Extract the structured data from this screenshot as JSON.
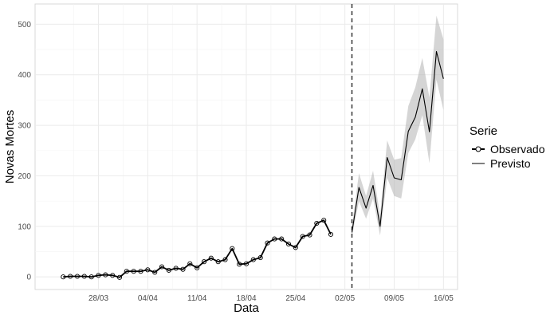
{
  "chart_data": {
    "type": "line",
    "title": "",
    "xlabel": "Data",
    "ylabel": "Novas Mortes",
    "ylim": [
      -25,
      540
    ],
    "yticks": [
      0,
      100,
      200,
      300,
      400,
      500
    ],
    "xrange": [
      "2020-03-19",
      "2020-05-18"
    ],
    "xticks": [
      {
        "date": "2020-03-28",
        "label": "28/03"
      },
      {
        "date": "2020-04-04",
        "label": "04/04"
      },
      {
        "date": "2020-04-11",
        "label": "11/04"
      },
      {
        "date": "2020-04-18",
        "label": "18/04"
      },
      {
        "date": "2020-04-25",
        "label": "25/04"
      },
      {
        "date": "2020-05-02",
        "label": "02/05"
      },
      {
        "date": "2020-05-09",
        "label": "09/05"
      },
      {
        "date": "2020-05-16",
        "label": "16/05"
      }
    ],
    "grid": true,
    "vline_date": "2020-05-03",
    "legend": {
      "title": "Serie",
      "placement": "right",
      "entries": [
        "Observado",
        "Previsto"
      ]
    },
    "series": [
      {
        "name": "Observado",
        "markers": true,
        "points": [
          [
            "2020-03-23",
            0
          ],
          [
            "2020-03-24",
            1
          ],
          [
            "2020-03-25",
            1
          ],
          [
            "2020-03-26",
            1
          ],
          [
            "2020-03-27",
            0
          ],
          [
            "2020-03-28",
            3
          ],
          [
            "2020-03-29",
            4
          ],
          [
            "2020-03-30",
            3
          ],
          [
            "2020-03-31",
            -1
          ],
          [
            "2020-04-01",
            11
          ],
          [
            "2020-04-02",
            11
          ],
          [
            "2020-04-03",
            11
          ],
          [
            "2020-04-04",
            14
          ],
          [
            "2020-04-05",
            9
          ],
          [
            "2020-04-06",
            20
          ],
          [
            "2020-04-07",
            13
          ],
          [
            "2020-04-08",
            17
          ],
          [
            "2020-04-09",
            15
          ],
          [
            "2020-04-10",
            26
          ],
          [
            "2020-04-11",
            18
          ],
          [
            "2020-04-12",
            30
          ],
          [
            "2020-04-13",
            37
          ],
          [
            "2020-04-14",
            30
          ],
          [
            "2020-04-15",
            34
          ],
          [
            "2020-04-16",
            56
          ],
          [
            "2020-04-17",
            25
          ],
          [
            "2020-04-18",
            26
          ],
          [
            "2020-04-19",
            34
          ],
          [
            "2020-04-20",
            38
          ],
          [
            "2020-04-21",
            67
          ],
          [
            "2020-04-22",
            75
          ],
          [
            "2020-04-23",
            75
          ],
          [
            "2020-04-24",
            65
          ],
          [
            "2020-04-25",
            58
          ],
          [
            "2020-04-26",
            80
          ],
          [
            "2020-04-27",
            83
          ],
          [
            "2020-04-28",
            106
          ],
          [
            "2020-04-29",
            112
          ],
          [
            "2020-04-30",
            84
          ]
        ]
      },
      {
        "name": "Previsto",
        "markers": false,
        "points": [
          [
            "2020-05-03",
            88
          ],
          [
            "2020-05-04",
            177
          ],
          [
            "2020-05-05",
            136
          ],
          [
            "2020-05-06",
            181
          ],
          [
            "2020-05-07",
            100
          ],
          [
            "2020-05-08",
            236
          ],
          [
            "2020-05-09",
            196
          ],
          [
            "2020-05-10",
            192
          ],
          [
            "2020-05-11",
            288
          ],
          [
            "2020-05-12",
            316
          ],
          [
            "2020-05-13",
            372
          ],
          [
            "2020-05-14",
            287
          ],
          [
            "2020-05-15",
            446
          ],
          [
            "2020-05-16",
            392
          ]
        ],
        "band_lower": [
          80,
          150,
          115,
          155,
          82,
          196,
          160,
          155,
          245,
          272,
          320,
          225,
          390,
          330
        ],
        "band_upper": [
          100,
          205,
          160,
          210,
          122,
          270,
          232,
          235,
          338,
          375,
          433,
          355,
          517,
          470
        ]
      }
    ]
  }
}
